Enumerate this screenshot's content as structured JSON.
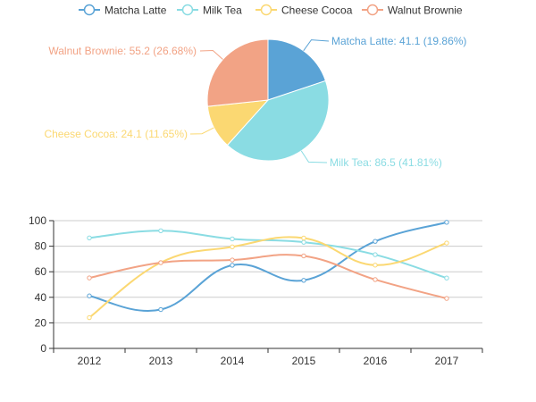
{
  "chart_data": [
    {
      "type": "pie",
      "title": "",
      "slices": [
        {
          "name": "Matcha Latte",
          "value": 41.1,
          "percent": "19.86%",
          "color": "#5aa3d6"
        },
        {
          "name": "Milk Tea",
          "value": 86.5,
          "percent": "41.81%",
          "color": "#8adce3"
        },
        {
          "name": "Cheese Cocoa",
          "value": 24.1,
          "percent": "11.65%",
          "color": "#fbd872"
        },
        {
          "name": "Walnut Brownie",
          "value": 55.2,
          "percent": "26.68%",
          "color": "#f2a385"
        }
      ],
      "slice_labels": [
        "Matcha Latte: 41.1 (19.86%)",
        "Milk Tea: 86.5 (41.81%)",
        "Cheese Cocoa: 24.1 (11.65%)",
        "Walnut Brownie: 55.2 (26.68%)"
      ],
      "legend": {
        "position": "top-center",
        "items": [
          "Matcha Latte",
          "Milk Tea",
          "Cheese Cocoa",
          "Walnut Brownie"
        ]
      }
    },
    {
      "type": "line",
      "title": "",
      "xlabel": "",
      "ylabel": "",
      "smooth": true,
      "grid": true,
      "categories": [
        "2012",
        "2013",
        "2014",
        "2015",
        "2016",
        "2017"
      ],
      "ylim": [
        0,
        100
      ],
      "yticks": [
        "0",
        "20",
        "40",
        "60",
        "80",
        "100"
      ],
      "series": [
        {
          "name": "Matcha Latte",
          "color": "#5aa3d6",
          "values": [
            41.1,
            30.4,
            65.1,
            53.3,
            83.8,
            98.7
          ]
        },
        {
          "name": "Milk Tea",
          "color": "#8adce3",
          "values": [
            86.5,
            92.1,
            85.7,
            83.1,
            73.4,
            55.1
          ]
        },
        {
          "name": "Cheese Cocoa",
          "color": "#fbd872",
          "values": [
            24.1,
            67.2,
            79.5,
            86.4,
            65.2,
            82.5
          ]
        },
        {
          "name": "Walnut Brownie",
          "color": "#f2a385",
          "values": [
            55.2,
            67.1,
            69.2,
            72.4,
            53.9,
            39.1
          ]
        }
      ]
    }
  ]
}
